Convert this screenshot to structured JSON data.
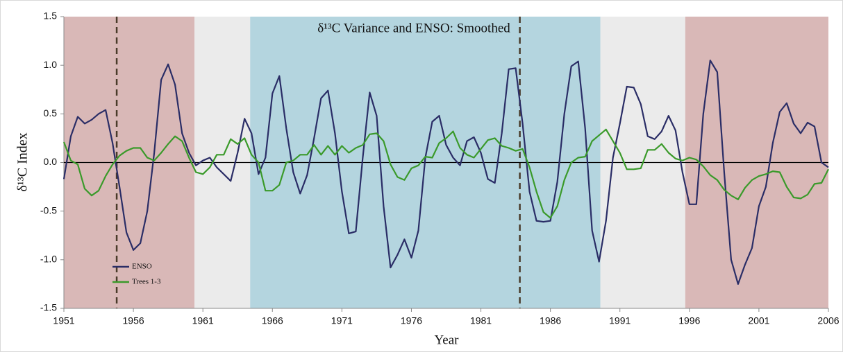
{
  "chart_data": {
    "type": "line",
    "title": "δ¹³C Variance and ENSO: Smoothed",
    "x_label": "Year",
    "y_label": "δ¹³C  Index",
    "x": [
      1951,
      1951.5,
      1952,
      1952.5,
      1953,
      1953.5,
      1954,
      1954.5,
      1955,
      1955.5,
      1956,
      1956.5,
      1957,
      1957.5,
      1958,
      1958.5,
      1959,
      1959.5,
      1960,
      1960.5,
      1961,
      1961.5,
      1962,
      1962.5,
      1963,
      1963.5,
      1964,
      1964.5,
      1965,
      1965.5,
      1966,
      1966.5,
      1967,
      1967.5,
      1968,
      1968.5,
      1969,
      1969.5,
      1970,
      1970.5,
      1971,
      1971.5,
      1972,
      1972.5,
      1973,
      1973.5,
      1974,
      1974.5,
      1975,
      1975.5,
      1976,
      1976.5,
      1977,
      1977.5,
      1978,
      1978.5,
      1979,
      1979.5,
      1980,
      1980.5,
      1981,
      1981.5,
      1982,
      1982.5,
      1983,
      1983.5,
      1984,
      1984.5,
      1985,
      1985.5,
      1986,
      1986.5,
      1987,
      1987.5,
      1988,
      1988.5,
      1989,
      1989.5,
      1990,
      1990.5,
      1991,
      1991.5,
      1992,
      1992.5,
      1993,
      1993.5,
      1994,
      1994.5,
      1995,
      1995.5,
      1996,
      1996.5,
      1997,
      1997.5,
      1998,
      1998.5,
      1999,
      1999.5,
      2000,
      2000.5,
      2001,
      2001.5,
      2002,
      2002.5,
      2003,
      2003.5,
      2004,
      2004.5,
      2005,
      2005.5,
      2006
    ],
    "series": [
      {
        "name": "ENSO",
        "color": "#2a2d66",
        "values": [
          -0.17,
          0.27,
          0.47,
          0.4,
          0.44,
          0.5,
          0.54,
          0.2,
          -0.25,
          -0.72,
          -0.9,
          -0.83,
          -0.5,
          0.1,
          0.85,
          1.01,
          0.8,
          0.3,
          0.1,
          -0.03,
          0.02,
          0.05,
          -0.05,
          -0.12,
          -0.19,
          0.1,
          0.45,
          0.3,
          -0.12,
          0.05,
          0.71,
          0.89,
          0.35,
          -0.1,
          -0.32,
          -0.13,
          0.25,
          0.66,
          0.74,
          0.3,
          -0.3,
          -0.73,
          -0.71,
          0.05,
          0.72,
          0.48,
          -0.45,
          -1.08,
          -0.95,
          -0.79,
          -0.98,
          -0.7,
          0.05,
          0.42,
          0.48,
          0.18,
          0.05,
          -0.03,
          0.22,
          0.26,
          0.1,
          -0.17,
          -0.21,
          0.3,
          0.96,
          0.97,
          0.4,
          -0.3,
          -0.6,
          -0.61,
          -0.6,
          -0.2,
          0.5,
          0.99,
          1.04,
          0.35,
          -0.7,
          -1.02,
          -0.6,
          0.05,
          0.4,
          0.78,
          0.77,
          0.6,
          0.27,
          0.24,
          0.32,
          0.48,
          0.33,
          -0.1,
          -0.43,
          -0.43,
          0.5,
          1.05,
          0.93,
          -0.1,
          -1.0,
          -1.25,
          -1.05,
          -0.88,
          -0.45,
          -0.25,
          0.2,
          0.52,
          0.61,
          0.4,
          0.3,
          0.41,
          0.37,
          0.0,
          -0.05
        ]
      },
      {
        "name": "Trees 1-3",
        "color": "#3a9a2a",
        "values": [
          0.21,
          0.02,
          -0.02,
          -0.27,
          -0.34,
          -0.29,
          -0.14,
          -0.02,
          0.07,
          0.12,
          0.15,
          0.15,
          0.05,
          0.02,
          0.1,
          0.19,
          0.27,
          0.22,
          0.05,
          -0.1,
          -0.12,
          -0.05,
          0.08,
          0.08,
          0.24,
          0.19,
          0.25,
          0.08,
          0.0,
          -0.29,
          -0.29,
          -0.23,
          0.0,
          0.02,
          0.08,
          0.08,
          0.18,
          0.08,
          0.17,
          0.08,
          0.17,
          0.1,
          0.15,
          0.18,
          0.29,
          0.3,
          0.22,
          -0.02,
          -0.15,
          -0.18,
          -0.06,
          -0.03,
          0.06,
          0.05,
          0.2,
          0.25,
          0.32,
          0.15,
          0.08,
          0.05,
          0.14,
          0.23,
          0.25,
          0.17,
          0.15,
          0.12,
          0.14,
          -0.05,
          -0.3,
          -0.51,
          -0.57,
          -0.45,
          -0.18,
          0.0,
          0.05,
          0.06,
          0.22,
          0.28,
          0.34,
          0.22,
          0.1,
          -0.07,
          -0.07,
          -0.06,
          0.13,
          0.13,
          0.19,
          0.1,
          0.04,
          0.02,
          0.05,
          0.03,
          -0.04,
          -0.13,
          -0.18,
          -0.28,
          -0.34,
          -0.38,
          -0.26,
          -0.18,
          -0.14,
          -0.12,
          -0.09,
          -0.1,
          -0.25,
          -0.36,
          -0.37,
          -0.33,
          -0.22,
          -0.21,
          -0.07
        ]
      }
    ],
    "xlim": [
      1951,
      2006
    ],
    "xticks": [
      1951,
      1956,
      1961,
      1966,
      1971,
      1976,
      1981,
      1986,
      1991,
      1996,
      2001,
      2006
    ],
    "ylim": [
      -1.5,
      1.5
    ],
    "yticks": [
      -1.5,
      {
        "value": -1.0,
        "label": "-1.0"
      },
      -0.5,
      {
        "value": 0.0,
        "label": "0.0"
      },
      0.5,
      {
        "value": 1.0,
        "label": "1.0"
      },
      1.5
    ],
    "bands": [
      {
        "from": 1951,
        "to": 1960.4,
        "color": "#d9b8b7"
      },
      {
        "from": 1960.4,
        "to": 1964.4,
        "color": "#ebebeb"
      },
      {
        "from": 1964.4,
        "to": 1989.6,
        "color": "#b4d5df"
      },
      {
        "from": 1989.6,
        "to": 1995.7,
        "color": "#ebebeb"
      },
      {
        "from": 1995.7,
        "to": 2006,
        "color": "#d9b8b7"
      }
    ],
    "vlines": [
      1954.8,
      1983.8
    ],
    "legend": "bottom-left"
  }
}
